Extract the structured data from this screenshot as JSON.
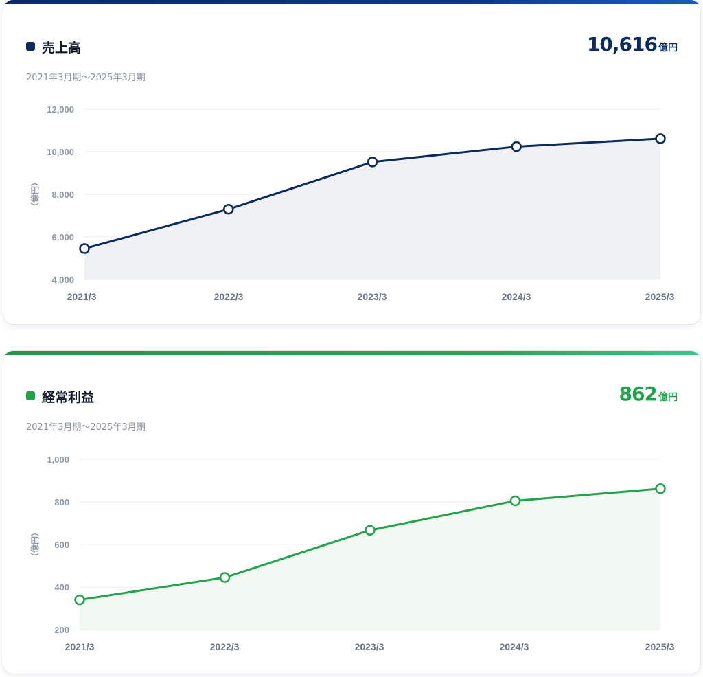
{
  "colors": {
    "navy": "#0b2a5e",
    "navy_fill": "#eff1f5",
    "green": "#23a34b",
    "green_fill": "#f1f9f2",
    "grid": "#eceef2"
  },
  "cards": [
    {
      "title": "売上高",
      "headline_value": "10,616",
      "headline_unit": "億円",
      "period": "2021年3月期〜2025年3月期"
    },
    {
      "title": "経常利益",
      "headline_value": "862",
      "headline_unit": "億円",
      "period": "2021年3月期〜2025年3月期"
    }
  ],
  "chart_data": [
    {
      "type": "area",
      "title": "売上高",
      "ylabel": "（億円）",
      "categories": [
        "2021/3",
        "2022/3",
        "2023/3",
        "2024/3",
        "2025/3"
      ],
      "values": [
        5450,
        7300,
        9520,
        10240,
        10616
      ],
      "ylim": [
        4000,
        12000
      ],
      "yticks": [
        4000,
        6000,
        8000,
        10000,
        12000
      ],
      "ytick_labels": [
        "4,000",
        "6,000",
        "8,000",
        "10,000",
        "12,000"
      ],
      "color": "#0b2a5e",
      "fill": "#eff1f5",
      "grid": true
    },
    {
      "type": "area",
      "title": "経常利益",
      "ylabel": "（億円）",
      "categories": [
        "2021/3",
        "2022/3",
        "2023/3",
        "2024/3",
        "2025/3"
      ],
      "values": [
        340,
        445,
        667,
        805,
        862
      ],
      "ylim": [
        200,
        1000
      ],
      "yticks": [
        200,
        400,
        600,
        800,
        1000
      ],
      "ytick_labels": [
        "200",
        "400",
        "600",
        "800",
        "1,000"
      ],
      "color": "#23a34b",
      "fill": "#f1f9f2",
      "grid": true
    }
  ]
}
